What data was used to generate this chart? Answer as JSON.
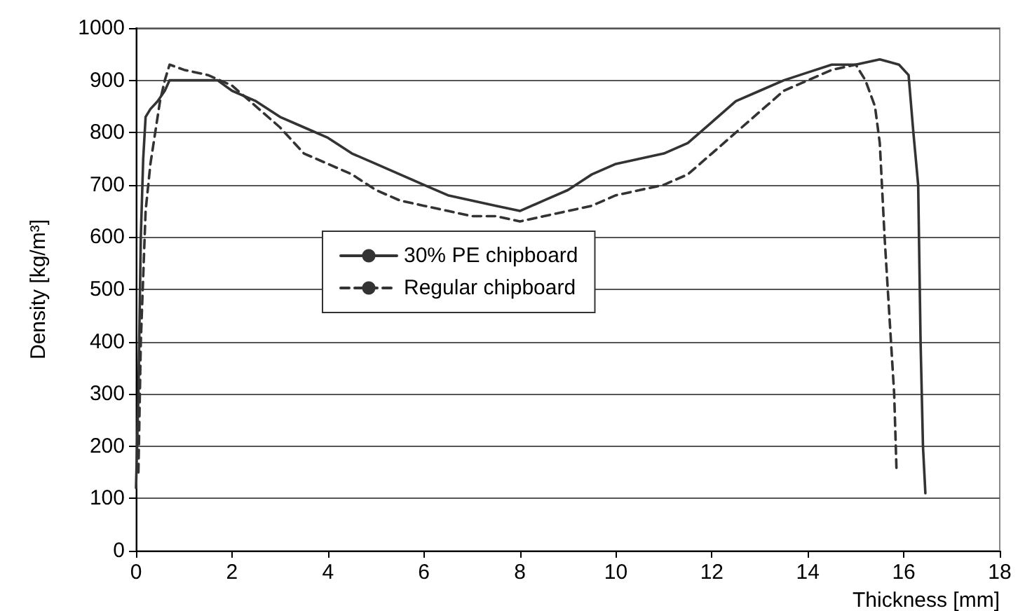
{
  "chart_data": {
    "type": "line",
    "xlabel": "Thickness [mm]",
    "ylabel": "Density [kg/m³]",
    "xlim": [
      0,
      18
    ],
    "xticks": [
      0,
      2,
      4,
      6,
      8,
      10,
      12,
      14,
      16,
      18
    ],
    "ylim": [
      0,
      1000
    ],
    "yticks": [
      0,
      100,
      200,
      300,
      400,
      500,
      600,
      700,
      800,
      900,
      1000
    ],
    "grid": "y",
    "legend": "center",
    "marker": "none",
    "series": [
      {
        "name": "30% PE chipboard",
        "color": "#333333",
        "line_style": "solid",
        "x": [
          0,
          0.05,
          0.1,
          0.15,
          0.2,
          0.3,
          0.45,
          0.6,
          0.7,
          1,
          1.7,
          2,
          2.5,
          3,
          3.5,
          4,
          4.5,
          5,
          5.5,
          6,
          6.5,
          7,
          7.5,
          8,
          8.5,
          9,
          9.5,
          10,
          10.5,
          11,
          11.5,
          12,
          12.5,
          13,
          13.5,
          14,
          14.5,
          15,
          15.5,
          15.9,
          16.1,
          16.2,
          16.3,
          16.35,
          16.4,
          16.45
        ],
        "values": [
          120,
          300,
          600,
          750,
          830,
          845,
          860,
          880,
          900,
          900,
          900,
          880,
          860,
          830,
          810,
          790,
          760,
          740,
          720,
          700,
          680,
          670,
          660,
          650,
          670,
          690,
          720,
          740,
          750,
          760,
          780,
          820,
          860,
          880,
          900,
          915,
          930,
          930,
          940,
          930,
          910,
          800,
          700,
          400,
          200,
          110
        ]
      },
      {
        "name": "Regular chipboard",
        "color": "#333333",
        "line_style": "dashed",
        "x": [
          0.05,
          0.1,
          0.2,
          0.3,
          0.4,
          0.5,
          0.6,
          0.7,
          1,
          1.5,
          2,
          2.5,
          3,
          3.5,
          4,
          4.5,
          5,
          5.5,
          6,
          6.5,
          7,
          7.5,
          8,
          8.5,
          9,
          9.5,
          10,
          10.5,
          11,
          11.5,
          12,
          12.5,
          13,
          13.5,
          14,
          14.5,
          15,
          15.2,
          15.4,
          15.5,
          15.6,
          15.7,
          15.8,
          15.85
        ],
        "values": [
          150,
          400,
          650,
          740,
          800,
          860,
          900,
          930,
          920,
          910,
          890,
          850,
          810,
          760,
          740,
          720,
          690,
          670,
          660,
          650,
          640,
          640,
          630,
          640,
          650,
          660,
          680,
          690,
          700,
          720,
          760,
          800,
          840,
          880,
          900,
          920,
          930,
          900,
          850,
          780,
          600,
          450,
          300,
          150
        ]
      }
    ]
  }
}
